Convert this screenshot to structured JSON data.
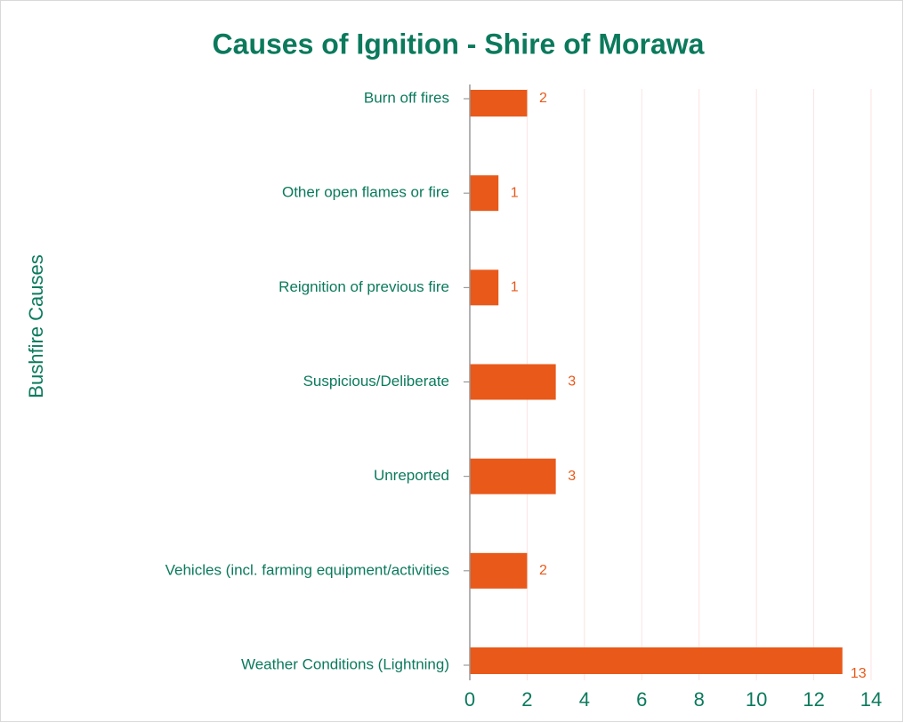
{
  "chart_data": {
    "type": "barh",
    "title": "Causes of Ignition - Shire of Morawa",
    "y_axis_label": "Bushfire Causes",
    "categories": [
      "Burn off fires",
      "Other open flames or fire",
      "Reignition of previous fire",
      "Suspicious/Deliberate",
      "Unreported",
      "Vehicles (incl. farming equipment/activities",
      "Weather Conditions (Lightning)"
    ],
    "values": [
      2,
      1,
      1,
      3,
      3,
      2,
      13
    ],
    "color": "#e8591a",
    "xlim": [
      0,
      14
    ],
    "xticks": [
      0,
      2,
      4,
      6,
      8,
      10,
      12,
      14
    ],
    "grid": true
  }
}
